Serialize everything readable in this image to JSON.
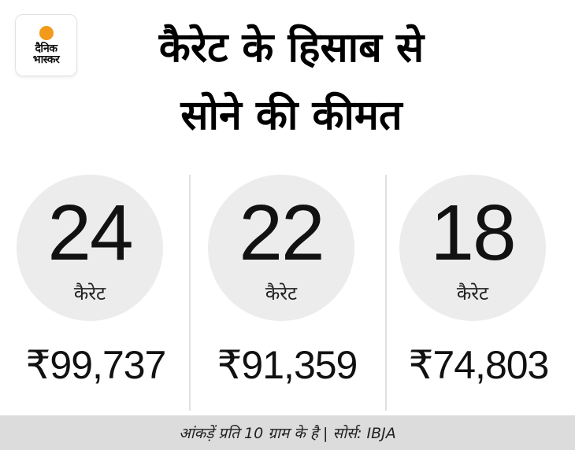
{
  "logo": {
    "line1": "दैनिक",
    "line2": "भास्कर",
    "brand_color": "#f39a1b"
  },
  "title": {
    "line1": "कैरेट के हिसाब से",
    "line2": "सोने की कीमत"
  },
  "items": [
    {
      "karat": "24",
      "unit": "कैरेट",
      "price": "₹99,737"
    },
    {
      "karat": "22",
      "unit": "कैरेट",
      "price": "₹91,359"
    },
    {
      "karat": "18",
      "unit": "कैरेट",
      "price": "₹74,803"
    }
  ],
  "footer": {
    "note": "आंकड़ें प्रति 10 ग्राम के है | सोर्स: IBJA"
  }
}
